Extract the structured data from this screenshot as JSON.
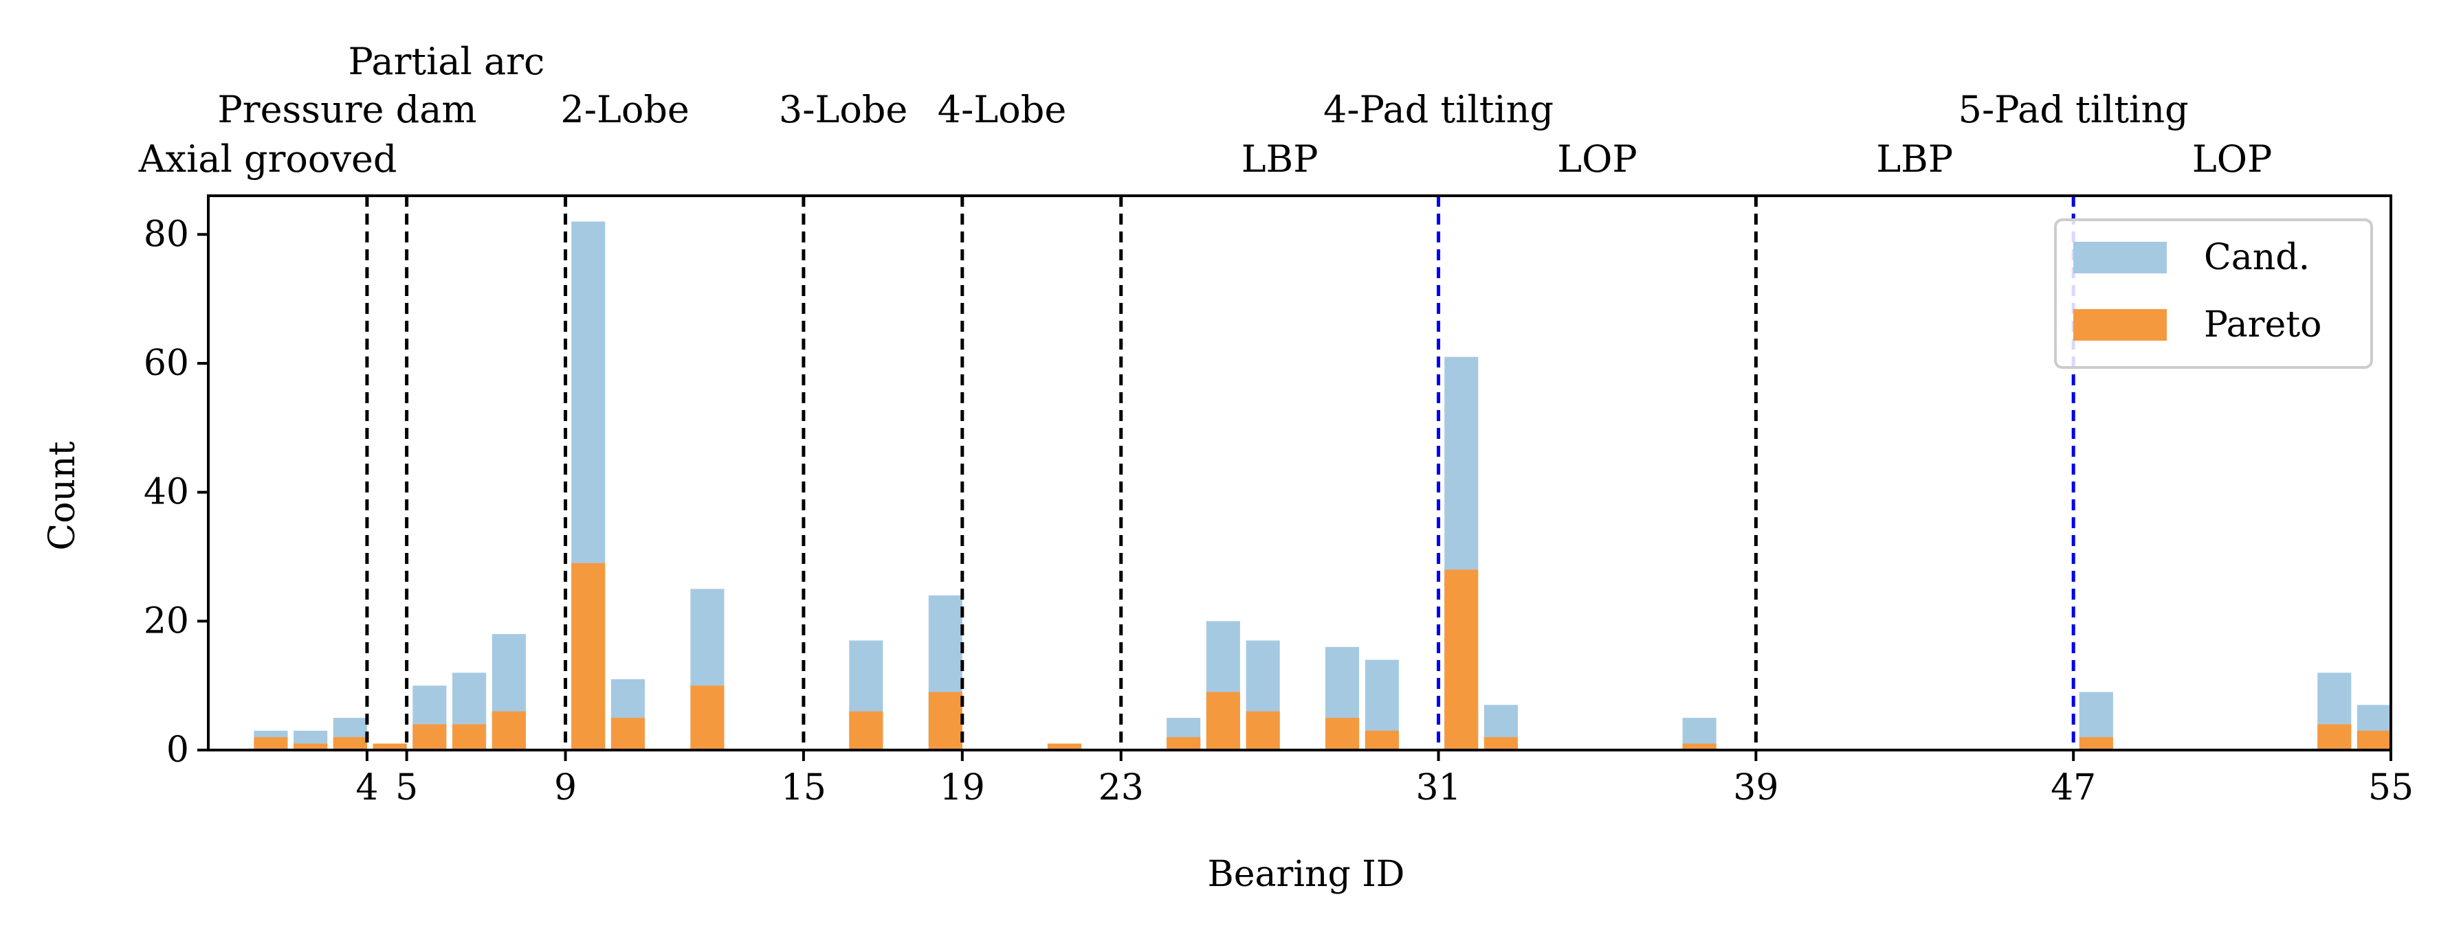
{
  "colors": {
    "candidates": "#a6c9e2",
    "pareto": "#f5993f",
    "separator_major": "#000000",
    "separator_minor": "#0000ee"
  },
  "chart_data": {
    "type": "bar",
    "xlabel": "Bearing ID",
    "ylabel": "Count",
    "xlim": [
      0,
      55
    ],
    "ylim": [
      0,
      86
    ],
    "yticks": [
      0,
      20,
      40,
      60,
      80
    ],
    "xticks": [
      4,
      5,
      9,
      15,
      19,
      23,
      31,
      39,
      47,
      55
    ],
    "legend": {
      "placement": "upper-right",
      "entries": [
        "Cand.",
        "Pareto"
      ]
    },
    "series": [
      {
        "name": "Cand.",
        "x": [
          2,
          3,
          4,
          5,
          6,
          7,
          8,
          10,
          11,
          13,
          17,
          19,
          22,
          25,
          26,
          27,
          29,
          30,
          32,
          33,
          38,
          48,
          54,
          55
        ],
        "values": [
          3,
          3,
          5,
          1,
          10,
          12,
          18,
          82,
          11,
          25,
          17,
          24,
          1,
          5,
          20,
          17,
          16,
          14,
          61,
          7,
          5,
          9,
          12,
          7
        ]
      },
      {
        "name": "Pareto",
        "x": [
          2,
          3,
          4,
          5,
          6,
          7,
          8,
          10,
          11,
          13,
          17,
          19,
          22,
          25,
          26,
          27,
          29,
          30,
          32,
          33,
          38,
          48,
          54,
          55
        ],
        "values": [
          2,
          1,
          2,
          1,
          4,
          4,
          6,
          29,
          5,
          10,
          6,
          9,
          1,
          2,
          9,
          6,
          5,
          3,
          28,
          2,
          1,
          2,
          4,
          3
        ]
      }
    ],
    "separators": [
      {
        "x": 4,
        "style": "major"
      },
      {
        "x": 5,
        "style": "major"
      },
      {
        "x": 9,
        "style": "major"
      },
      {
        "x": 15,
        "style": "major"
      },
      {
        "x": 19,
        "style": "major"
      },
      {
        "x": 23,
        "style": "major"
      },
      {
        "x": 31,
        "style": "minor"
      },
      {
        "x": 39,
        "style": "major"
      },
      {
        "x": 47,
        "style": "minor"
      }
    ],
    "annotations": [
      {
        "text": "Axial grooved",
        "x": 1.5,
        "row": 2
      },
      {
        "text": "Pressure dam",
        "x": 3.5,
        "row": 1
      },
      {
        "text": "Partial arc",
        "x": 6.0,
        "row": 0
      },
      {
        "text": "2-Lobe",
        "x": 10.5,
        "row": 1
      },
      {
        "text": "3-Lobe",
        "x": 16.0,
        "row": 1
      },
      {
        "text": "4-Lobe",
        "x": 20.0,
        "row": 1
      },
      {
        "text": "4-Pad tilting",
        "x": 31.0,
        "row": 1
      },
      {
        "text": "LBP",
        "x": 27.0,
        "row": 2
      },
      {
        "text": "LOP",
        "x": 35.0,
        "row": 2
      },
      {
        "text": "5-Pad tilting",
        "x": 47.0,
        "row": 1
      },
      {
        "text": "LBP",
        "x": 43.0,
        "row": 2
      },
      {
        "text": "LOP",
        "x": 51.0,
        "row": 2
      }
    ]
  }
}
